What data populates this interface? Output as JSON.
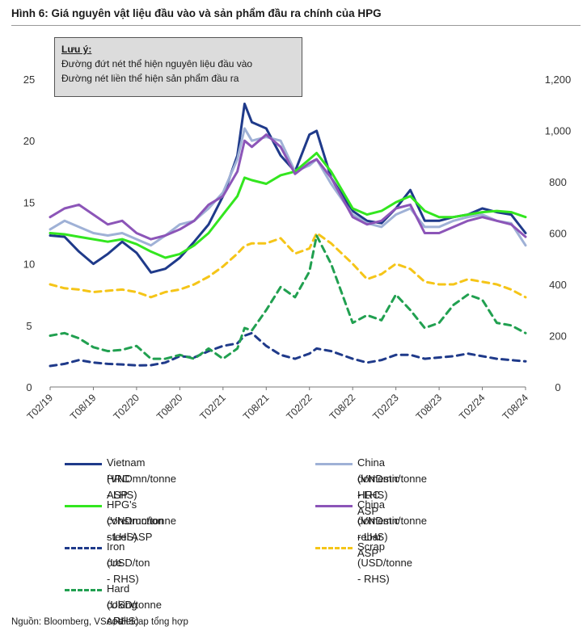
{
  "title": "Hình 6: Giá nguyên vật liệu đầu vào và sản phẩm đầu ra chính của HPG",
  "note": {
    "heading": "Lưu ý:",
    "line1": "Đường đứt nét thể hiện nguyên liệu đầu vào",
    "line2": "Đường nét liền thể hiện sản phẩm đầu ra"
  },
  "source": "Nguồn:  Bloomberg, VSA, Vietcap tổng hợp",
  "chart_data": {
    "type": "line",
    "x_ticks": [
      "T02/19",
      "T08/19",
      "T02/20",
      "T08/20",
      "T02/21",
      "T08/21",
      "T02/22",
      "T08/22",
      "T02/23",
      "T08/23",
      "T02/24",
      "T08/24"
    ],
    "x_range": [
      "T02/19",
      "T08/24"
    ],
    "ylim_left": [
      0,
      25
    ],
    "yticks_left": [
      "0",
      "5",
      "10",
      "15",
      "20",
      "25"
    ],
    "ylim_right": [
      0,
      1200
    ],
    "yticks_right": [
      "0",
      "200",
      "400",
      "600",
      "800",
      "1,000",
      "1,200"
    ],
    "grid": false,
    "legend_position": "bottom",
    "series": [
      {
        "name": "Vietnam HRC ASP",
        "unit": "(VNDmn/tonne - LHS)",
        "axis": "left",
        "color": "#1f3a8a",
        "dash": false,
        "x": [
          "T02/19",
          "T04/19",
          "T06/19",
          "T08/19",
          "T10/19",
          "T12/19",
          "T02/20",
          "T04/20",
          "T06/20",
          "T08/20",
          "T10/20",
          "T12/20",
          "T02/21",
          "T04/21",
          "T05/21",
          "T06/21",
          "T08/21",
          "T10/21",
          "T12/21",
          "T02/22",
          "T03/22",
          "T05/22",
          "T08/22",
          "T10/22",
          "T12/22",
          "T02/23",
          "T04/23",
          "T06/23",
          "T08/23",
          "T10/23",
          "T12/23",
          "T02/24",
          "T04/24",
          "T06/24",
          "T08/24"
        ],
        "y": [
          12.3,
          12.2,
          11.0,
          10.0,
          10.8,
          11.8,
          10.9,
          9.3,
          9.6,
          10.5,
          11.8,
          13.2,
          15.5,
          18.8,
          23.0,
          21.5,
          21.0,
          18.8,
          17.5,
          20.5,
          20.8,
          17.0,
          14.3,
          13.5,
          13.3,
          14.5,
          16.0,
          13.5,
          13.5,
          13.8,
          14.0,
          14.5,
          14.2,
          14.0,
          12.5
        ]
      },
      {
        "name": "China domestic HRC ASP",
        "unit": "(VNDmn/tonne - LHS)",
        "axis": "left",
        "color": "#9fb1d6",
        "dash": false,
        "x": [
          "T02/19",
          "T04/19",
          "T06/19",
          "T08/19",
          "T10/19",
          "T12/19",
          "T02/20",
          "T04/20",
          "T06/20",
          "T08/20",
          "T10/20",
          "T12/20",
          "T02/21",
          "T04/21",
          "T05/21",
          "T06/21",
          "T08/21",
          "T10/21",
          "T12/21",
          "T02/22",
          "T03/22",
          "T05/22",
          "T08/22",
          "T10/22",
          "T12/22",
          "T02/23",
          "T04/23",
          "T06/23",
          "T08/23",
          "T10/23",
          "T12/23",
          "T02/24",
          "T04/24",
          "T06/24",
          "T08/24"
        ],
        "y": [
          12.8,
          13.5,
          13.0,
          12.5,
          12.3,
          12.5,
          12.0,
          11.5,
          12.3,
          13.2,
          13.5,
          14.5,
          15.8,
          18.5,
          21.0,
          20.0,
          20.3,
          20.0,
          17.5,
          18.0,
          18.5,
          16.5,
          14.0,
          13.3,
          13.0,
          14.0,
          14.5,
          13.0,
          13.0,
          13.5,
          13.8,
          14.0,
          13.5,
          13.3,
          11.5
        ]
      },
      {
        "name": "HPG's construction steel ASP",
        "unit": "(VNDmn/tonne - LHS)",
        "axis": "left",
        "color": "#33e61f",
        "dash": false,
        "x": [
          "T02/19",
          "T04/19",
          "T06/19",
          "T08/19",
          "T10/19",
          "T12/19",
          "T02/20",
          "T04/20",
          "T06/20",
          "T08/20",
          "T10/20",
          "T12/20",
          "T02/21",
          "T04/21",
          "T05/21",
          "T06/21",
          "T08/21",
          "T10/21",
          "T12/21",
          "T02/22",
          "T03/22",
          "T05/22",
          "T08/22",
          "T10/22",
          "T12/22",
          "T02/23",
          "T04/23",
          "T06/23",
          "T08/23",
          "T10/23",
          "T12/23",
          "T02/24",
          "T04/24",
          "T06/24",
          "T08/24"
        ],
        "y": [
          12.5,
          12.4,
          12.2,
          12.0,
          11.8,
          12.0,
          11.6,
          11.0,
          10.5,
          10.8,
          11.5,
          12.5,
          14.0,
          15.5,
          17.0,
          16.8,
          16.5,
          17.2,
          17.5,
          18.5,
          19.0,
          17.5,
          14.5,
          14.0,
          14.3,
          15.0,
          15.5,
          14.3,
          13.8,
          13.8,
          14.0,
          14.2,
          14.3,
          14.2,
          13.8
        ]
      },
      {
        "name": "China domestic rebar ASP",
        "unit": "(VNDmn/tonne - LHS)",
        "axis": "left",
        "color": "#8c55b8",
        "dash": false,
        "x": [
          "T02/19",
          "T04/19",
          "T06/19",
          "T08/19",
          "T10/19",
          "T12/19",
          "T02/20",
          "T04/20",
          "T06/20",
          "T08/20",
          "T10/20",
          "T12/20",
          "T02/21",
          "T04/21",
          "T05/21",
          "T06/21",
          "T08/21",
          "T10/21",
          "T12/21",
          "T02/22",
          "T03/22",
          "T05/22",
          "T08/22",
          "T10/22",
          "T12/22",
          "T02/23",
          "T04/23",
          "T06/23",
          "T08/23",
          "T10/23",
          "T12/23",
          "T02/24",
          "T04/24",
          "T06/24",
          "T08/24"
        ],
        "y": [
          13.8,
          14.5,
          14.8,
          14.0,
          13.2,
          13.5,
          12.5,
          12.0,
          12.3,
          12.8,
          13.5,
          14.8,
          15.5,
          17.5,
          20.0,
          19.5,
          20.5,
          19.5,
          17.3,
          18.2,
          18.5,
          17.0,
          13.8,
          13.2,
          13.5,
          14.5,
          14.8,
          12.5,
          12.5,
          13.0,
          13.5,
          13.8,
          13.5,
          13.2,
          12.2
        ]
      },
      {
        "name": "Iron ore",
        "unit": "(USD/ton - RHS)",
        "axis": "right",
        "color": "#1f3a8a",
        "dash": true,
        "x": [
          "T02/19",
          "T04/19",
          "T06/19",
          "T08/19",
          "T10/19",
          "T12/19",
          "T02/20",
          "T04/20",
          "T06/20",
          "T08/20",
          "T10/20",
          "T12/20",
          "T02/21",
          "T04/21",
          "T05/21",
          "T06/21",
          "T08/21",
          "T10/21",
          "T12/21",
          "T02/22",
          "T03/22",
          "T05/22",
          "T08/22",
          "T10/22",
          "T12/22",
          "T02/23",
          "T04/23",
          "T06/23",
          "T08/23",
          "T10/23",
          "T12/23",
          "T02/24",
          "T04/24",
          "T06/24",
          "T08/24"
        ],
        "y": [
          82,
          90,
          105,
          95,
          90,
          88,
          84,
          85,
          95,
          120,
          115,
          140,
          160,
          170,
          200,
          210,
          160,
          125,
          110,
          130,
          150,
          140,
          110,
          95,
          105,
          125,
          125,
          110,
          115,
          120,
          130,
          120,
          110,
          105,
          100
        ]
      },
      {
        "name": "Scrap",
        "unit": "(USD/tonne - RHS)",
        "axis": "right",
        "color": "#f5c518",
        "dash": true,
        "x": [
          "T02/19",
          "T04/19",
          "T06/19",
          "T08/19",
          "T10/19",
          "T12/19",
          "T02/20",
          "T04/20",
          "T06/20",
          "T08/20",
          "T10/20",
          "T12/20",
          "T02/21",
          "T04/21",
          "T05/21",
          "T06/21",
          "T08/21",
          "T10/21",
          "T12/21",
          "T02/22",
          "T03/22",
          "T05/22",
          "T08/22",
          "T10/22",
          "T12/22",
          "T02/23",
          "T04/23",
          "T06/23",
          "T08/23",
          "T10/23",
          "T12/23",
          "T02/24",
          "T04/24",
          "T06/24",
          "T08/24"
        ],
        "y": [
          400,
          385,
          380,
          370,
          375,
          380,
          370,
          350,
          370,
          380,
          400,
          430,
          470,
          520,
          550,
          560,
          560,
          580,
          520,
          540,
          600,
          560,
          480,
          420,
          440,
          480,
          460,
          410,
          400,
          400,
          420,
          410,
          400,
          380,
          350
        ]
      },
      {
        "name": "Hard coking coal",
        "unit": "(USD/tonne - RHS)",
        "axis": "right",
        "color": "#21a050",
        "dash": true,
        "x": [
          "T02/19",
          "T04/19",
          "T06/19",
          "T08/19",
          "T10/19",
          "T12/19",
          "T02/20",
          "T04/20",
          "T06/20",
          "T08/20",
          "T10/20",
          "T12/20",
          "T02/21",
          "T04/21",
          "T05/21",
          "T06/21",
          "T08/21",
          "T10/21",
          "T12/21",
          "T02/22",
          "T03/22",
          "T05/22",
          "T08/22",
          "T10/22",
          "T12/22",
          "T02/23",
          "T04/23",
          "T06/23",
          "T08/23",
          "T10/23",
          "T12/23",
          "T02/24",
          "T04/24",
          "T06/24",
          "T08/24"
        ],
        "y": [
          200,
          210,
          190,
          155,
          140,
          145,
          160,
          110,
          110,
          125,
          110,
          150,
          110,
          150,
          230,
          220,
          300,
          390,
          350,
          450,
          590,
          480,
          250,
          280,
          260,
          360,
          300,
          230,
          250,
          320,
          360,
          340,
          250,
          240,
          210
        ]
      }
    ]
  }
}
